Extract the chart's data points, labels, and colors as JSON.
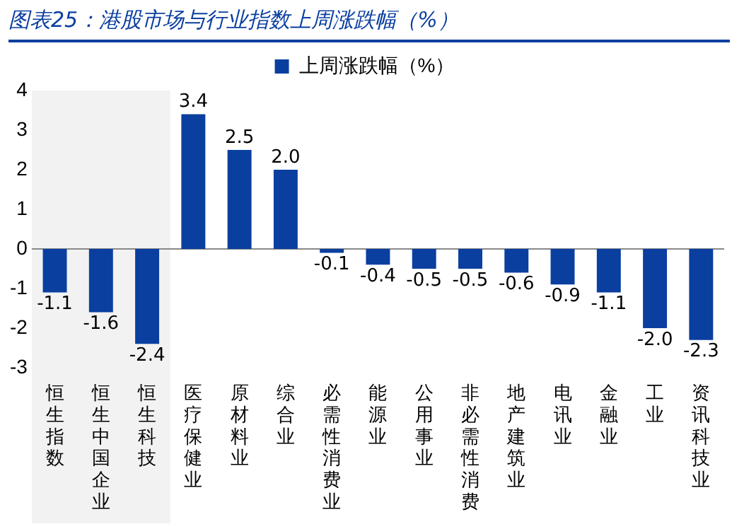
{
  "chart_data": {
    "type": "bar",
    "title": "图表25：港股市场与行业指数上周涨跌幅（%）",
    "categories": [
      "恒生指数",
      "恒生中国企业",
      "恒生科技",
      "医疗保健业",
      "原材料业",
      "综合业",
      "必需性消费业",
      "能源业",
      "公用事业",
      "非必需性消费",
      "地产建筑业",
      "电讯业",
      "金融业",
      "工业",
      "资讯科技业"
    ],
    "series": [
      {
        "name": "上周涨跌幅（%）",
        "color": "#0a3fa0",
        "values": [
          -1.1,
          -1.6,
          -2.4,
          3.4,
          2.5,
          2.0,
          -0.1,
          -0.4,
          -0.5,
          -0.5,
          -0.6,
          -0.9,
          -1.1,
          -2.0,
          -2.3
        ]
      }
    ],
    "value_labels": [
      "-1.1",
      "-1.6",
      "-2.4",
      "3.4",
      "2.5",
      "2.0",
      "-0.1",
      "-0.4",
      "-0.5",
      "-0.5",
      "-0.6",
      "-0.9",
      "-1.1",
      "-2.0",
      "-2.3"
    ],
    "ylim": [
      -3,
      4
    ],
    "yticks": [
      -3,
      -2,
      -1,
      0,
      1,
      2,
      3,
      4
    ],
    "legend": "top",
    "bands": [
      {
        "axis": "x",
        "from": "恒生指数",
        "to": "恒生科技",
        "color": "#f2f2f2"
      }
    ]
  }
}
